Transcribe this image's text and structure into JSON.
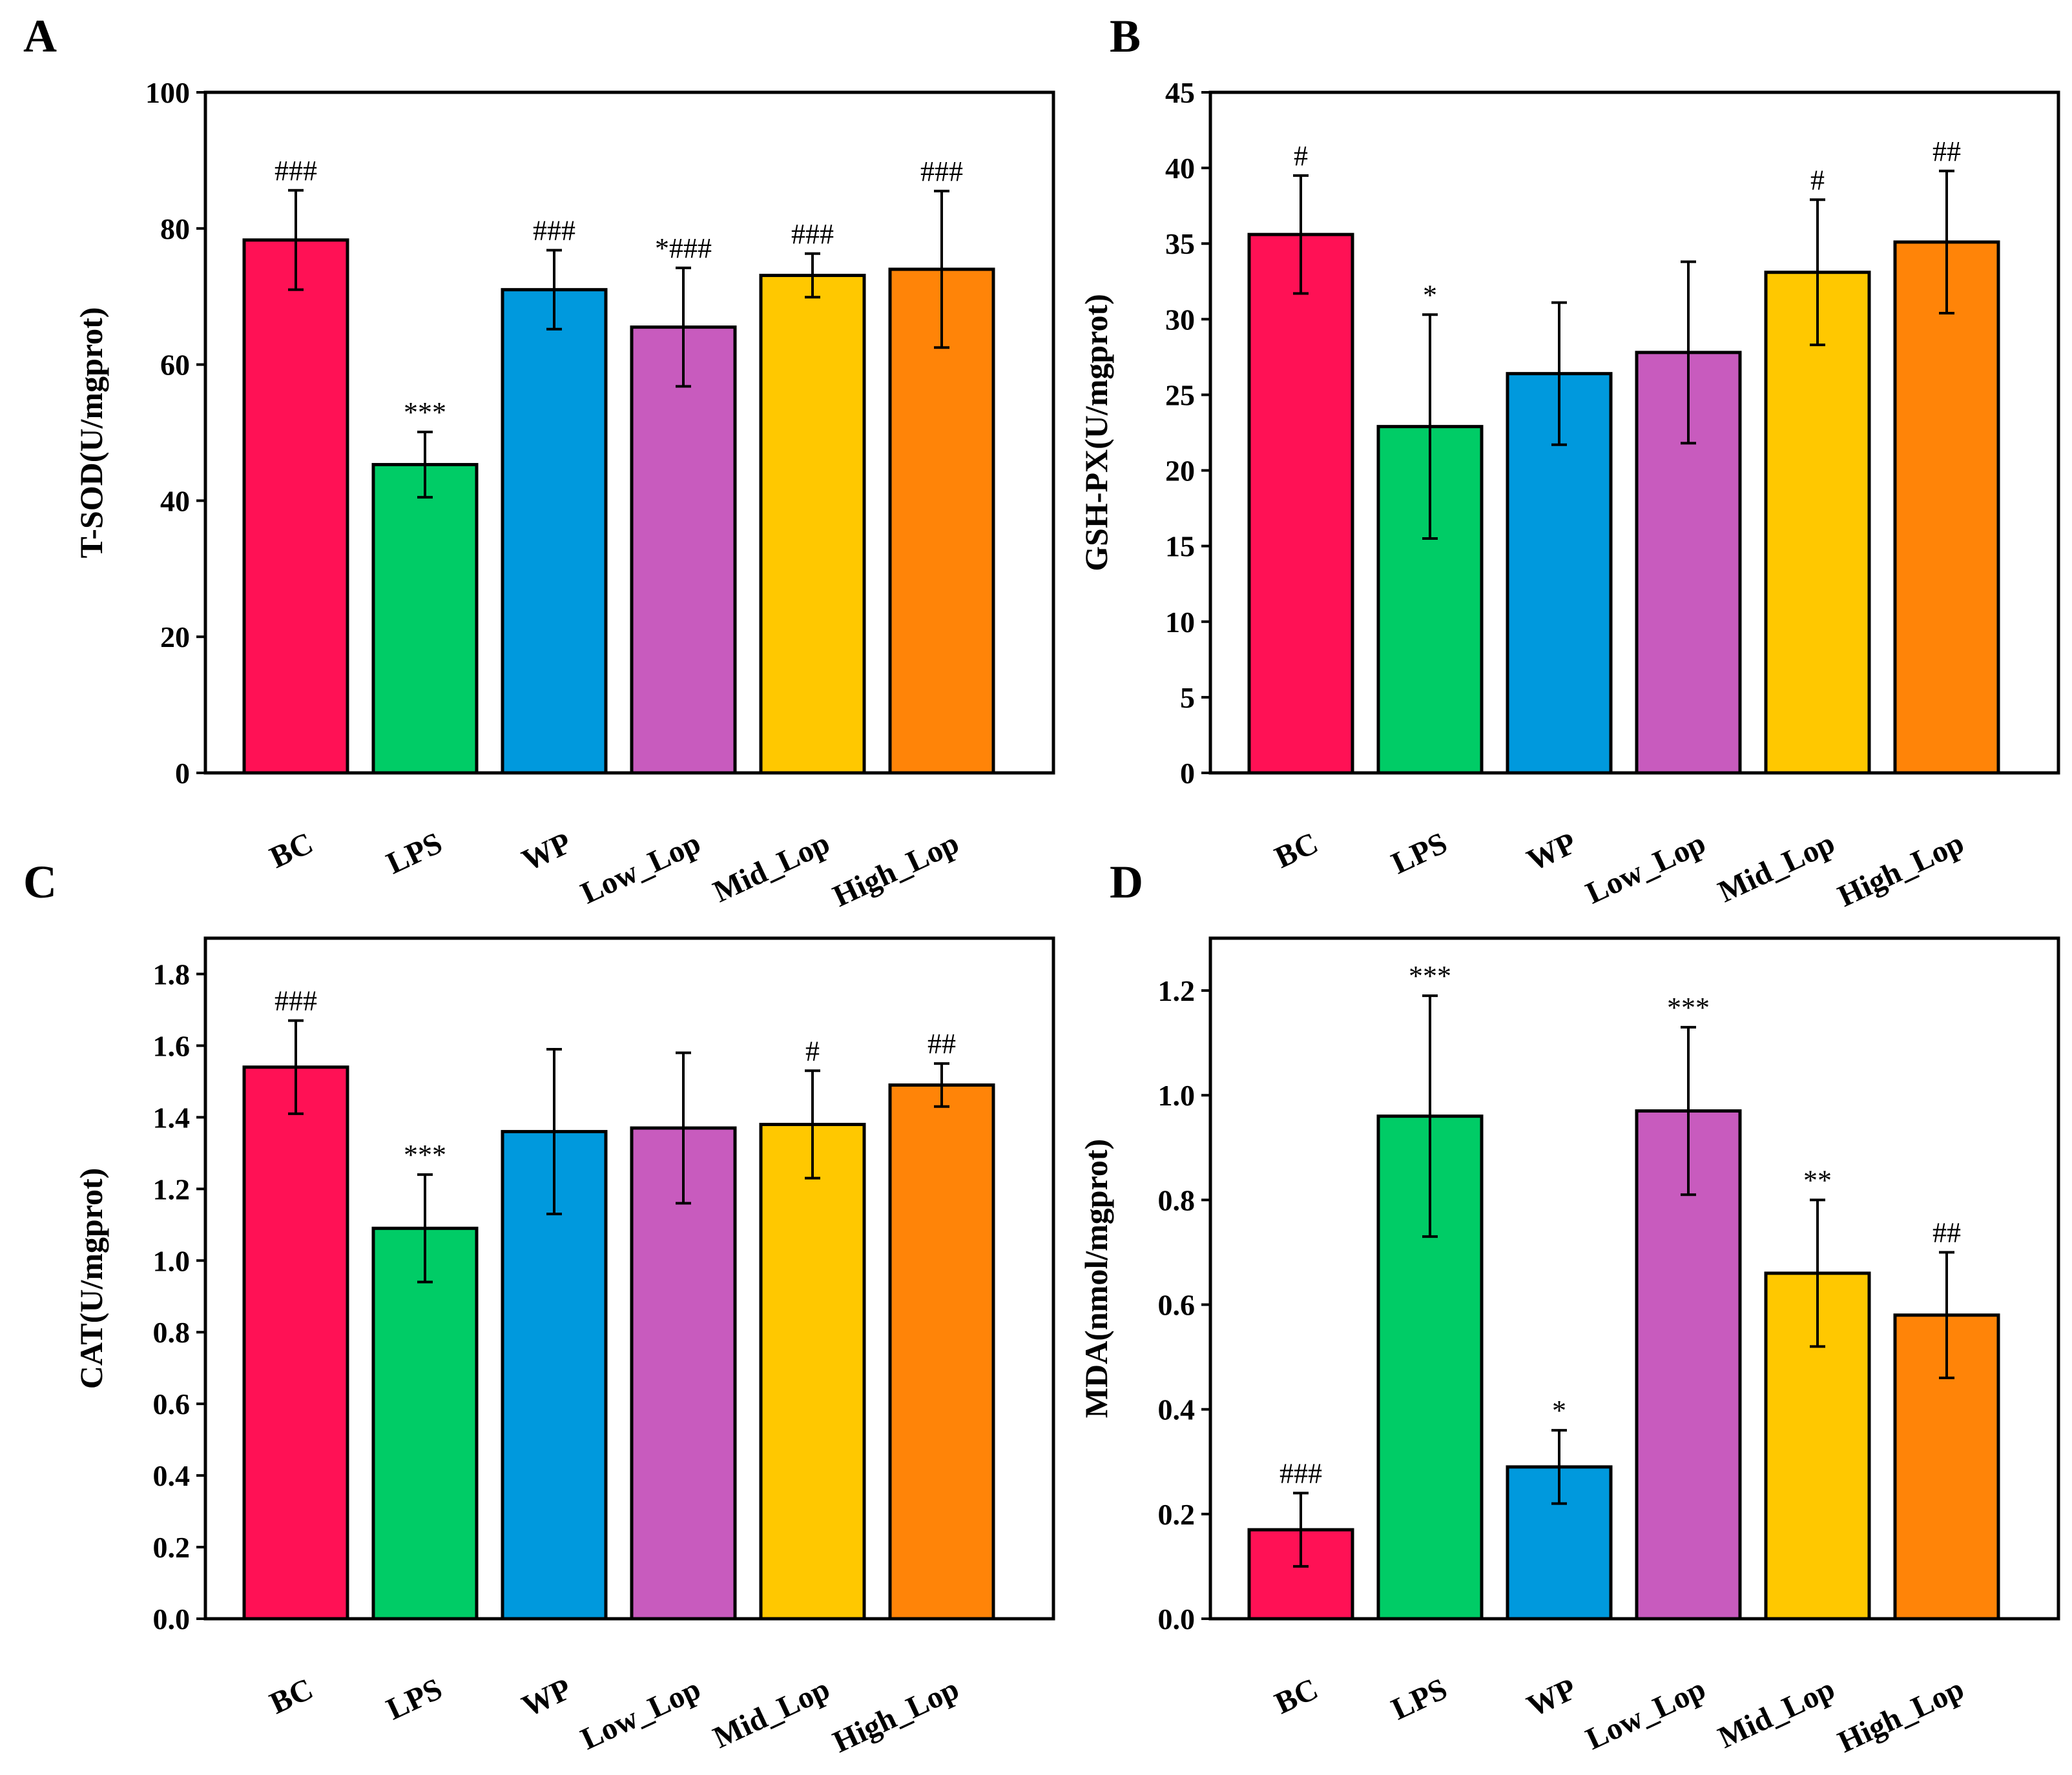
{
  "colors": {
    "BC": "#FF1155",
    "LPS": "#00CC66",
    "WP": "#0099DD",
    "Low_Lop": "#C85BBE",
    "Mid_Lop": "#FFC800",
    "High_Lop": "#FF8408",
    "outline": "#000000"
  },
  "chart_data": [
    {
      "panel": "A",
      "type": "bar",
      "ylabel": "T-SOD(U/mgprot)",
      "ylim": [
        0,
        100
      ],
      "yticks": [
        0,
        20,
        40,
        60,
        80,
        100
      ],
      "ytick_labels": [
        "0",
        "20",
        "40",
        "60",
        "80",
        "100"
      ],
      "categories": [
        "BC",
        "LPS",
        "WP",
        "Low_Lop",
        "Mid_Lop",
        "High_Lop"
      ],
      "values": [
        78.3,
        45.3,
        71.0,
        65.5,
        73.1,
        74.0
      ],
      "errors": [
        7.3,
        4.8,
        5.8,
        8.7,
        3.2,
        11.5
      ],
      "annotations": [
        "###",
        "***",
        "###",
        "*###",
        "###",
        "###"
      ]
    },
    {
      "panel": "B",
      "type": "bar",
      "ylabel": "GSH-PX(U/mgprot)",
      "ylim": [
        0,
        45
      ],
      "yticks": [
        0,
        5,
        10,
        15,
        20,
        25,
        30,
        35,
        40,
        45
      ],
      "ytick_labels": [
        "0",
        "5",
        "10",
        "15",
        "20",
        "25",
        "30",
        "35",
        "40",
        "45"
      ],
      "categories": [
        "BC",
        "LPS",
        "WP",
        "Low_Lop",
        "Mid_Lop",
        "High_Lop"
      ],
      "values": [
        35.6,
        22.9,
        26.4,
        27.8,
        33.1,
        35.1
      ],
      "errors": [
        3.9,
        7.4,
        4.7,
        6.0,
        4.8,
        4.7
      ],
      "annotations": [
        "#",
        "*",
        "",
        "",
        "#",
        "##"
      ]
    },
    {
      "panel": "C",
      "type": "bar",
      "ylabel": "CAT(U/mgprot)",
      "ylim": [
        0,
        1.9
      ],
      "yticks": [
        0,
        0.2,
        0.4,
        0.6,
        0.8,
        1.0,
        1.2,
        1.4,
        1.6,
        1.8
      ],
      "ytick_labels": [
        "0.0",
        "0.2",
        "0.4",
        "0.6",
        "0.8",
        "1.0",
        "1.2",
        "1.4",
        "1.6",
        "1.8"
      ],
      "categories": [
        "BC",
        "LPS",
        "WP",
        "Low_Lop",
        "Mid_Lop",
        "High_Lop"
      ],
      "values": [
        1.54,
        1.09,
        1.36,
        1.37,
        1.38,
        1.49
      ],
      "errors": [
        0.13,
        0.15,
        0.23,
        0.21,
        0.15,
        0.06
      ],
      "annotations": [
        "###",
        "***",
        "",
        "",
        "#",
        "##"
      ]
    },
    {
      "panel": "D",
      "type": "bar",
      "ylabel": "MDA(nmol/mgprot)",
      "ylim": [
        0,
        1.3
      ],
      "yticks": [
        0,
        0.2,
        0.4,
        0.6,
        0.8,
        1.0,
        1.2
      ],
      "ytick_labels": [
        "0.0",
        "0.2",
        "0.4",
        "0.6",
        "0.8",
        "1.0",
        "1.2"
      ],
      "categories": [
        "BC",
        "LPS",
        "WP",
        "Low_Lop",
        "Mid_Lop",
        "High_Lop"
      ],
      "values": [
        0.17,
        0.96,
        0.29,
        0.97,
        0.66,
        0.58
      ],
      "errors": [
        0.07,
        0.23,
        0.07,
        0.16,
        0.14,
        0.12
      ],
      "annotations": [
        "###",
        "***",
        "*",
        "***",
        "**",
        "##"
      ]
    }
  ]
}
